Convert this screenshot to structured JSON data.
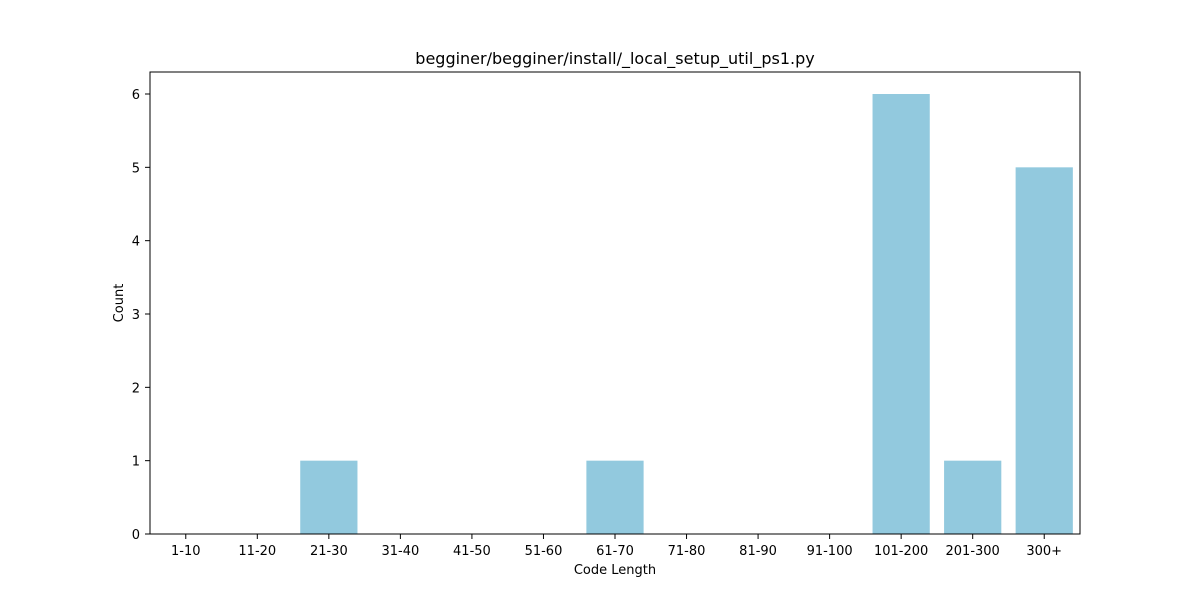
{
  "colors": {
    "bar": "#92c9de",
    "axis": "#000000",
    "background": "#ffffff"
  },
  "chart_data": {
    "type": "bar",
    "title": "begginer/begginer/install/_local_setup_util_ps1.py",
    "xlabel": "Code Length",
    "ylabel": "Count",
    "categories": [
      "1-10",
      "11-20",
      "21-30",
      "31-40",
      "41-50",
      "51-60",
      "61-70",
      "71-80",
      "81-90",
      "91-100",
      "101-200",
      "201-300",
      "300+"
    ],
    "values": [
      0,
      0,
      1,
      0,
      0,
      0,
      1,
      0,
      0,
      0,
      6,
      1,
      5
    ],
    "ylim": [
      0,
      6.3
    ],
    "yticks": [
      0,
      1,
      2,
      3,
      4,
      5,
      6
    ],
    "grid": false,
    "legend": "none"
  }
}
